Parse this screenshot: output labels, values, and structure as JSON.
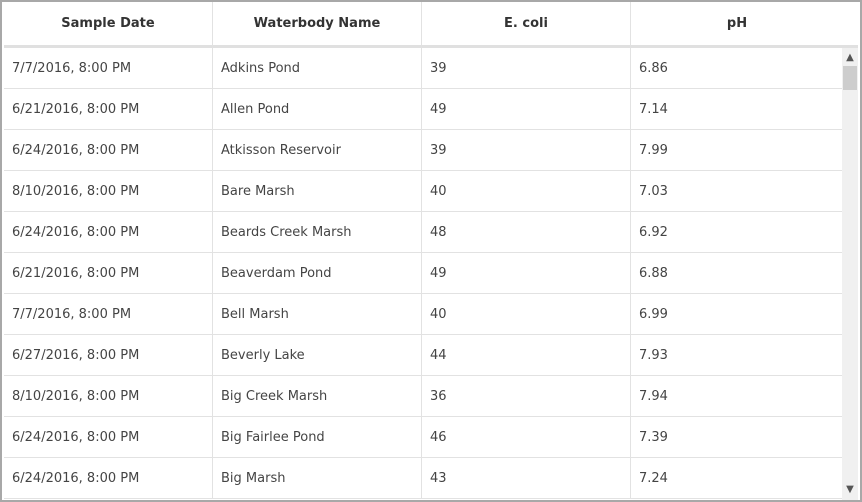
{
  "columns": [
    "Sample Date",
    "Waterbody Name",
    "E. coli",
    "pH"
  ],
  "rows": [
    [
      "7/7/2016, 8:00 PM",
      "Adkins Pond",
      "39",
      "6.86"
    ],
    [
      "6/21/2016, 8:00 PM",
      "Allen Pond",
      "49",
      "7.14"
    ],
    [
      "6/24/2016, 8:00 PM",
      "Atkisson Reservoir",
      "39",
      "7.99"
    ],
    [
      "8/10/2016, 8:00 PM",
      "Bare Marsh",
      "40",
      "7.03"
    ],
    [
      "6/24/2016, 8:00 PM",
      "Beards Creek Marsh",
      "48",
      "6.92"
    ],
    [
      "6/21/2016, 8:00 PM",
      "Beaverdam Pond",
      "49",
      "6.88"
    ],
    [
      "7/7/2016, 8:00 PM",
      "Bell Marsh",
      "40",
      "6.99"
    ],
    [
      "6/27/2016, 8:00 PM",
      "Beverly Lake",
      "44",
      "7.93"
    ],
    [
      "8/10/2016, 8:00 PM",
      "Big Creek Marsh",
      "36",
      "7.94"
    ],
    [
      "6/24/2016, 8:00 PM",
      "Big Fairlee Pond",
      "46",
      "7.39"
    ],
    [
      "6/24/2016, 8:00 PM",
      "Big Marsh",
      "43",
      "7.24"
    ]
  ],
  "scrollbar": {
    "up_icon": "chevron-up-icon",
    "down_icon": "chevron-down-icon"
  }
}
